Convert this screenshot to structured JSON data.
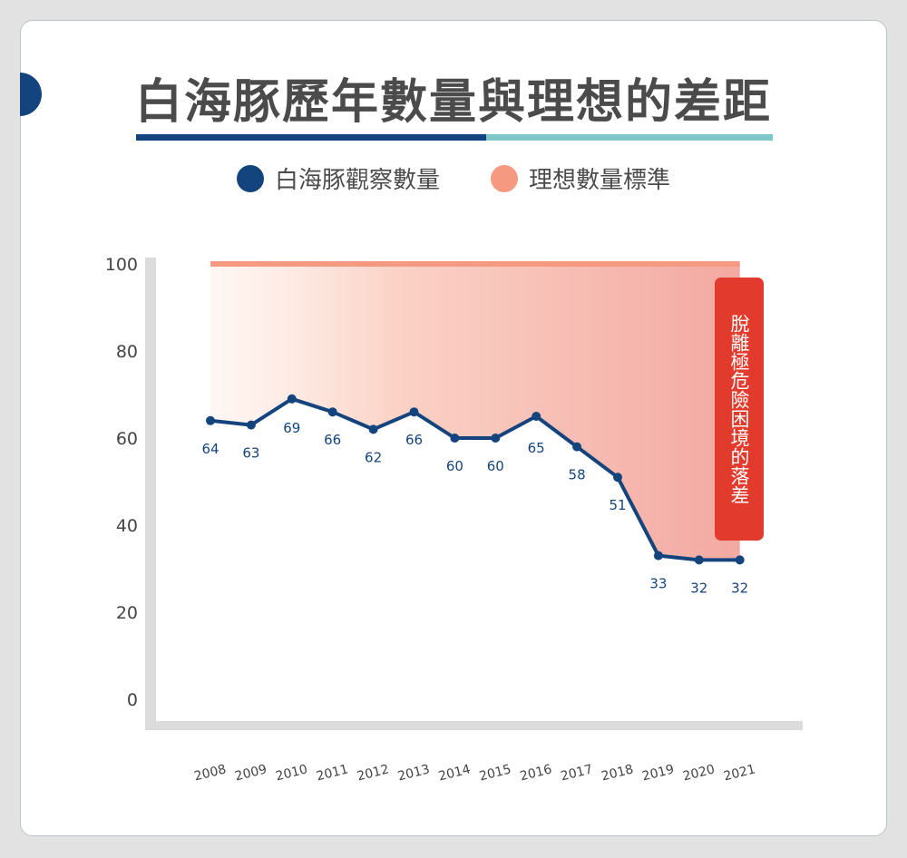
{
  "title": "白海豚歷年數量與理想的差距",
  "legend": {
    "observed_label": "白海豚觀察數量",
    "ideal_label": "理想數量標準"
  },
  "callout": "脫離極危險困境的落差",
  "colors": {
    "observed": "#14447e",
    "ideal": "#f59a80",
    "title_bar_left": "#14447e",
    "title_bar_right": "#7cc8c8",
    "callout": "#e23a2c"
  },
  "chart_data": {
    "type": "line",
    "x": [
      "2008",
      "2009",
      "2010",
      "2011",
      "2012",
      "2013",
      "2014",
      "2015",
      "2016",
      "2017",
      "2018",
      "2019",
      "2020",
      "2021"
    ],
    "series": [
      {
        "name": "白海豚觀察數量",
        "values": [
          64,
          63,
          69,
          66,
          62,
          66,
          60,
          60,
          65,
          58,
          51,
          33,
          32,
          32
        ]
      },
      {
        "name": "理想數量標準",
        "values": [
          100,
          100,
          100,
          100,
          100,
          100,
          100,
          100,
          100,
          100,
          100,
          100,
          100,
          100
        ]
      }
    ],
    "yticks": [
      0,
      20,
      40,
      60,
      80,
      100
    ],
    "ylim": [
      0,
      100
    ],
    "grid": false
  }
}
